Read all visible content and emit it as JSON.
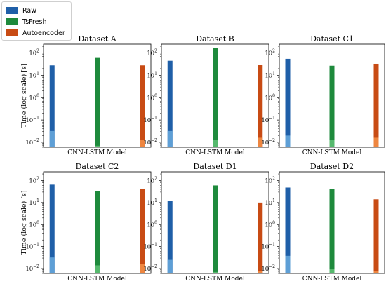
{
  "legend": [
    {
      "label": "Raw",
      "color": "#1f5fa8"
    },
    {
      "label": "TsFresh",
      "color": "#1e8a3c"
    },
    {
      "label": "Autoencoder",
      "color": "#c84b14"
    }
  ],
  "chart_data": [
    {
      "type": "bar",
      "title": "Dataset A",
      "xlabel": "CNN-LSTM Model",
      "ylabel": "Time (log scale) [s]",
      "yscale": "log",
      "ylim": [
        0.006,
        250
      ],
      "yticks": [
        0.01,
        0.1,
        1,
        10,
        100
      ],
      "series": [
        {
          "name": "Raw",
          "values": [
            28,
            0.032
          ]
        },
        {
          "name": "TsFresh",
          "values": [
            65,
            0.007
          ]
        },
        {
          "name": "Autoencoder",
          "values": [
            28,
            0.013
          ]
        }
      ]
    },
    {
      "type": "bar",
      "title": "Dataset B",
      "xlabel": "CNN-LSTM Model",
      "ylabel": "",
      "yscale": "log",
      "ylim": [
        0.006,
        250
      ],
      "yticks": [
        0.01,
        0.1,
        1,
        10,
        100
      ],
      "series": [
        {
          "name": "Raw",
          "values": [
            45,
            0.032
          ]
        },
        {
          "name": "TsFresh",
          "values": [
            170,
            0.013
          ]
        },
        {
          "name": "Autoencoder",
          "values": [
            30,
            0.016
          ]
        }
      ]
    },
    {
      "type": "bar",
      "title": "Dataset C1",
      "xlabel": "CNN-LSTM Model",
      "ylabel": "",
      "yscale": "log",
      "ylim": [
        0.006,
        250
      ],
      "yticks": [
        0.01,
        0.1,
        1,
        10,
        100
      ],
      "series": [
        {
          "name": "Raw",
          "values": [
            55,
            0.02
          ]
        },
        {
          "name": "TsFresh",
          "values": [
            27,
            0.013
          ]
        },
        {
          "name": "Autoencoder",
          "values": [
            33,
            0.016
          ]
        }
      ]
    },
    {
      "type": "bar",
      "title": "Dataset C2",
      "xlabel": "CNN-LSTM Model",
      "ylabel": "Time (log scale) [s]",
      "yscale": "log",
      "ylim": [
        0.006,
        250
      ],
      "yticks": [
        0.01,
        0.1,
        1,
        10,
        100
      ],
      "series": [
        {
          "name": "Raw",
          "values": [
            65,
            0.032
          ]
        },
        {
          "name": "TsFresh",
          "values": [
            34,
            0.014
          ]
        },
        {
          "name": "Autoencoder",
          "values": [
            43,
            0.016
          ]
        }
      ]
    },
    {
      "type": "bar",
      "title": "Dataset D1",
      "xlabel": "CNN-LSTM Model",
      "ylabel": "",
      "yscale": "log",
      "ylim": [
        0.006,
        250
      ],
      "yticks": [
        0.01,
        0.1,
        1,
        10,
        100
      ],
      "series": [
        {
          "name": "Raw",
          "values": [
            12,
            0.025
          ]
        },
        {
          "name": "TsFresh",
          "values": [
            60,
            0.007
          ]
        },
        {
          "name": "Autoencoder",
          "values": [
            10,
            0.008
          ]
        }
      ]
    },
    {
      "type": "bar",
      "title": "Dataset D2",
      "xlabel": "CNN-LSTM Model",
      "ylabel": "",
      "yscale": "log",
      "ylim": [
        0.006,
        250
      ],
      "yticks": [
        0.01,
        0.1,
        1,
        10,
        100
      ],
      "series": [
        {
          "name": "Raw",
          "values": [
            48,
            0.038
          ]
        },
        {
          "name": "TsFresh",
          "values": [
            42,
            0.01
          ]
        },
        {
          "name": "Autoencoder",
          "values": [
            14,
            0.008
          ]
        }
      ]
    }
  ]
}
